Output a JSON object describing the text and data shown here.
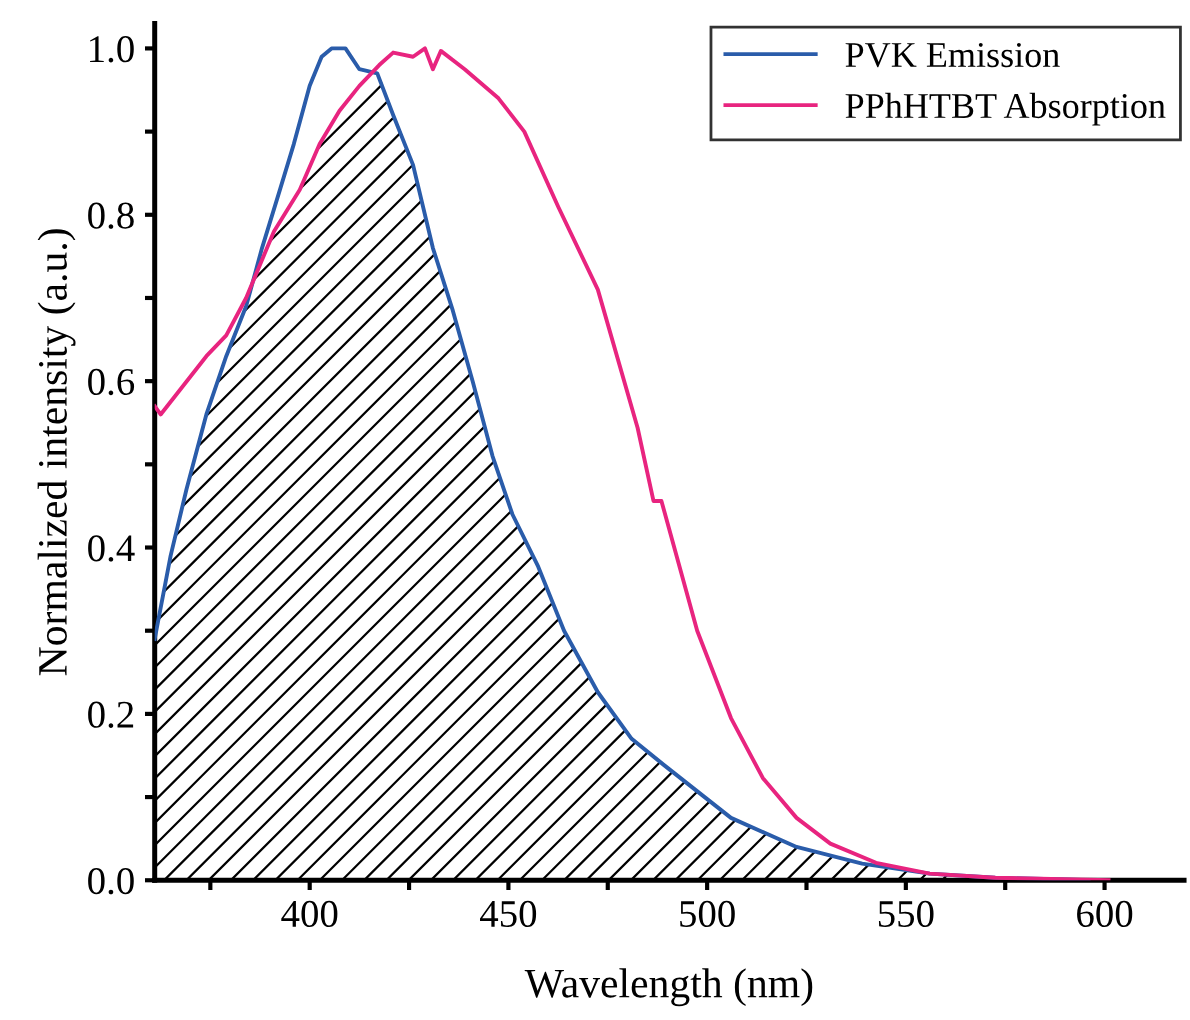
{
  "chart_data": {
    "type": "line",
    "xlabel": "Wavelength (nm)",
    "ylabel": "Normalized intensity (a.u.)",
    "xlim": [
      361,
      620
    ],
    "ylim": [
      0,
      1.03
    ],
    "xticks": [
      {
        "value": 375,
        "label": null
      },
      400,
      {
        "value": 425,
        "label": null
      },
      450,
      {
        "value": 475,
        "label": null
      },
      500,
      {
        "value": 525,
        "label": null
      },
      550,
      {
        "value": 575,
        "label": null
      },
      600
    ],
    "yticks": [
      {
        "value": 0,
        "label": "0.0"
      },
      {
        "value": 0.1,
        "label": null
      },
      {
        "value": 0.2,
        "label": "0.2"
      },
      {
        "value": 0.3,
        "label": null
      },
      {
        "value": 0.4,
        "label": "0.4"
      },
      {
        "value": 0.5,
        "label": null
      },
      {
        "value": 0.6,
        "label": "0.6"
      },
      {
        "value": 0.7,
        "label": null
      },
      {
        "value": 0.8,
        "label": "0.8"
      },
      {
        "value": 0.9,
        "label": null
      },
      {
        "value": 1.0,
        "label": "1.0"
      }
    ],
    "grid": false,
    "legend": "top right",
    "marker": "none",
    "line_style": "solid",
    "series": [
      {
        "type": "area",
        "color": "#000000",
        "x": [
          361,
          365,
          369,
          374,
          379,
          384,
          387.5,
          391,
          397.5,
          402.5,
          407.5,
          412.5,
          417.5,
          421,
          426,
          431,
          436,
          441,
          446,
          451,
          457.5,
          464,
          472.5,
          481,
          489,
          506,
          522.5,
          539,
          556,
          572.5,
          596
        ],
        "values": [
          0.29,
          0.39,
          0.47,
          0.56,
          0.63,
          0.69,
          0.74,
          0.78,
          0.83,
          0.885,
          0.925,
          0.955,
          0.97,
          0.92,
          0.86,
          0.76,
          0.685,
          0.6,
          0.51,
          0.44,
          0.377,
          0.3,
          0.226,
          0.17,
          0.139,
          0.075,
          0.04,
          0.02,
          0.008,
          0.003,
          0.0
        ]
      },
      {
        "name": "PVK Emission",
        "color": "#2a5caa",
        "x": [
          361,
          365,
          369,
          374,
          379,
          384,
          388,
          392.5,
          396,
          400,
          403,
          405.5,
          409,
          412.5,
          417,
          421,
          426,
          431,
          436,
          441,
          446,
          451,
          457.5,
          464,
          472.5,
          481,
          489,
          506,
          522.5,
          539,
          556,
          572.5,
          596
        ],
        "values": [
          0.29,
          0.39,
          0.47,
          0.56,
          0.63,
          0.69,
          0.76,
          0.83,
          0.885,
          0.955,
          0.99,
          1.0,
          1.0,
          0.975,
          0.97,
          0.92,
          0.86,
          0.76,
          0.685,
          0.6,
          0.51,
          0.44,
          0.377,
          0.3,
          0.226,
          0.17,
          0.139,
          0.075,
          0.04,
          0.02,
          0.008,
          0.003,
          0.0
        ]
      },
      {
        "name": "PPhHTBT Absorption",
        "color": "#e8247f",
        "x": [
          361,
          362.5,
          374,
          379,
          384,
          387.5,
          391,
          397.5,
          402.5,
          407.5,
          412.5,
          417.5,
          421,
          426,
          429,
          431,
          433,
          439,
          447.5,
          454,
          462.5,
          472.5,
          482.5,
          486.5,
          488.5,
          497.5,
          506,
          514,
          522.5,
          531,
          542.5,
          556,
          572.5,
          601
        ],
        "values": [
          0.57,
          0.56,
          0.63,
          0.655,
          0.7,
          0.74,
          0.78,
          0.83,
          0.885,
          0.925,
          0.955,
          0.98,
          0.995,
          0.99,
          1.0,
          0.975,
          0.997,
          0.975,
          0.94,
          0.9,
          0.81,
          0.71,
          0.544,
          0.456,
          0.456,
          0.3,
          0.195,
          0.123,
          0.075,
          0.044,
          0.021,
          0.008,
          0.003,
          0.0
        ]
      }
    ]
  }
}
